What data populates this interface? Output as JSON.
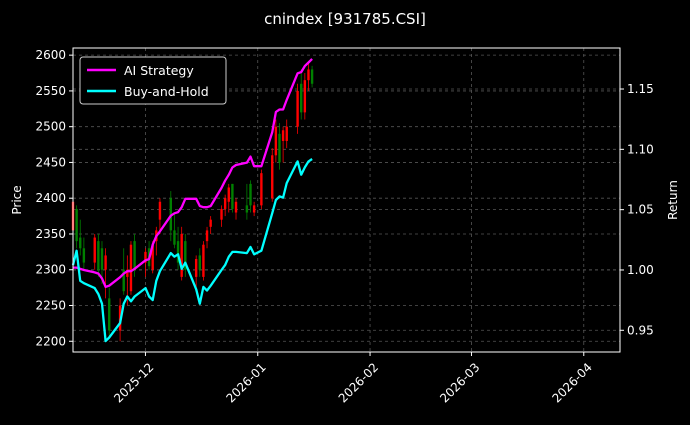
{
  "chart_data": {
    "type": "line",
    "title": "cnindex [931785.CSI]",
    "ylabel": "Price",
    "y2label": "Return",
    "xlim": [
      "2025-11-11",
      "2026-04-11"
    ],
    "ylim": [
      2185,
      2610
    ],
    "y2lim": [
      0.932,
      1.184
    ],
    "x_ticks": [
      "2025-12",
      "2026-01",
      "2026-02",
      "2026-03",
      "2026-04"
    ],
    "x_tick_dates": [
      "2025-12-01",
      "2026-01-01",
      "2026-02-01",
      "2026-03-01",
      "2026-04-01"
    ],
    "y_ticks": [
      2200,
      2250,
      2300,
      2350,
      2400,
      2450,
      2500,
      2550,
      2600
    ],
    "y2_ticks": [
      "0.95",
      "1.00",
      "1.05",
      "1.10",
      "1.15"
    ],
    "grid": true,
    "legend_position": "top-left",
    "colors": {
      "ai": "#ff00ff",
      "bh": "#00ffff",
      "up": "#ff0000",
      "down": "#008000",
      "grid": "#555555"
    },
    "dates": [
      "2025-11-11",
      "2025-11-12",
      "2025-11-13",
      "2025-11-14",
      "2025-11-17",
      "2025-11-18",
      "2025-11-19",
      "2025-11-20",
      "2025-11-21",
      "2025-11-24",
      "2025-11-25",
      "2025-11-26",
      "2025-11-27",
      "2025-11-28",
      "2025-12-01",
      "2025-12-02",
      "2025-12-03",
      "2025-12-04",
      "2025-12-05",
      "2025-12-08",
      "2025-12-09",
      "2025-12-10",
      "2025-12-11",
      "2025-12-12",
      "2025-12-15",
      "2025-12-16",
      "2025-12-17",
      "2025-12-18",
      "2025-12-19",
      "2025-12-22",
      "2025-12-23",
      "2025-12-24",
      "2025-12-25",
      "2025-12-26",
      "2025-12-29",
      "2025-12-30",
      "2025-12-31",
      "2026-01-02",
      "2026-01-05",
      "2026-01-06",
      "2026-01-07",
      "2026-01-08",
      "2026-01-09",
      "2026-01-12",
      "2026-01-13",
      "2026-01-14",
      "2026-01-15",
      "2026-01-16"
    ],
    "series": [
      {
        "name": "AI Strategy",
        "axis": "right",
        "values": [
          1.002,
          1.002,
          1.001,
          1.0,
          0.998,
          0.997,
          0.993,
          0.986,
          0.987,
          0.994,
          0.997,
          0.999,
          0.999,
          1.001,
          1.008,
          1.009,
          1.021,
          1.028,
          1.032,
          1.045,
          1.047,
          1.048,
          1.052,
          1.059,
          1.059,
          1.053,
          1.052,
          1.052,
          1.053,
          1.068,
          1.074,
          1.079,
          1.085,
          1.087,
          1.089,
          1.094,
          1.086,
          1.086,
          1.114,
          1.131,
          1.133,
          1.133,
          1.141,
          1.163,
          1.164,
          1.169,
          1.172,
          1.175
        ]
      },
      {
        "name": "Buy-and-Hold",
        "axis": "right",
        "values": [
          1.004,
          1.016,
          0.991,
          0.989,
          0.985,
          0.98,
          0.972,
          0.941,
          0.944,
          0.956,
          0.972,
          0.978,
          0.974,
          0.978,
          0.985,
          0.978,
          0.975,
          0.991,
          0.999,
          1.014,
          1.011,
          1.013,
          1.001,
          1.006,
          0.984,
          0.972,
          0.986,
          0.983,
          0.987,
          1.0,
          1.004,
          1.011,
          1.015,
          1.015,
          1.014,
          1.019,
          1.013,
          1.016,
          1.047,
          1.058,
          1.061,
          1.06,
          1.072,
          1.09,
          1.079,
          1.085,
          1.09,
          1.092
        ]
      }
    ],
    "ohlc": [
      [
        2355,
        2400,
        2345,
        2395
      ],
      [
        2385,
        2390,
        2330,
        2340
      ],
      [
        2345,
        2370,
        2320,
        2330
      ],
      [
        2330,
        2345,
        2300,
        2310
      ],
      [
        2310,
        2350,
        2300,
        2345
      ],
      [
        2340,
        2350,
        2290,
        2300
      ],
      [
        2330,
        2340,
        2280,
        2300
      ],
      [
        2300,
        2330,
        2260,
        2320
      ],
      [
        2260,
        2275,
        2205,
        2215
      ],
      [
        2215,
        2260,
        2200,
        2250
      ],
      [
        2300,
        2330,
        2265,
        2270
      ],
      [
        2290,
        2320,
        2250,
        2300
      ],
      [
        2270,
        2340,
        2265,
        2335
      ],
      [
        2340,
        2350,
        2290,
        2300
      ],
      [
        2310,
        2330,
        2290,
        2325
      ],
      [
        2330,
        2340,
        2300,
        2305
      ],
      [
        2300,
        2340,
        2295,
        2335
      ],
      [
        2340,
        2360,
        2320,
        2355
      ],
      [
        2370,
        2400,
        2350,
        2395
      ],
      [
        2400,
        2410,
        2340,
        2355
      ],
      [
        2355,
        2380,
        2330,
        2335
      ],
      [
        2340,
        2360,
        2300,
        2310
      ],
      [
        2290,
        2360,
        2285,
        2350
      ],
      [
        2340,
        2350,
        2290,
        2300
      ],
      [
        2290,
        2320,
        2270,
        2315
      ],
      [
        2320,
        2330,
        2290,
        2300
      ],
      [
        2290,
        2340,
        2285,
        2335
      ],
      [
        2340,
        2360,
        2330,
        2355
      ],
      [
        2360,
        2375,
        2350,
        2370
      ],
      [
        2370,
        2390,
        2360,
        2385
      ],
      [
        2385,
        2405,
        2375,
        2400
      ],
      [
        2395,
        2420,
        2380,
        2415
      ],
      [
        2420,
        2420,
        2380,
        2385
      ],
      [
        2380,
        2400,
        2370,
        2395
      ],
      [
        2390,
        2420,
        2370,
        2380
      ],
      [
        2420,
        2425,
        2380,
        2390
      ],
      [
        2380,
        2395,
        2375,
        2390
      ],
      [
        2390,
        2440,
        2385,
        2435
      ],
      [
        2400,
        2470,
        2395,
        2460
      ],
      [
        2460,
        2510,
        2450,
        2500
      ],
      [
        2490,
        2505,
        2440,
        2450
      ],
      [
        2480,
        2500,
        2450,
        2495
      ],
      [
        2480,
        2510,
        2470,
        2500
      ],
      [
        2500,
        2560,
        2490,
        2550
      ],
      [
        2560,
        2580,
        2510,
        2520
      ],
      [
        2520,
        2575,
        2510,
        2565
      ],
      [
        2565,
        2590,
        2550,
        2580
      ],
      [
        2580,
        2585,
        2555,
        2560
      ]
    ]
  }
}
